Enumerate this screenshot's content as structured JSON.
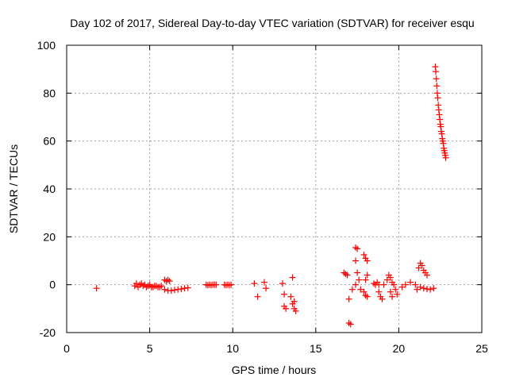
{
  "chart_data": {
    "type": "scatter",
    "title": "Day 102 of 2017, Sidereal Day-to-day VTEC variation (SDTVAR) for receiver esqu",
    "xlabel": "GPS time / hours",
    "ylabel": "SDTVAR / TECUs",
    "xlim": [
      0,
      25
    ],
    "ylim": [
      -20,
      100
    ],
    "xticks": [
      0,
      5,
      10,
      15,
      20,
      25
    ],
    "yticks": [
      -20,
      0,
      20,
      40,
      60,
      80,
      100
    ],
    "xtick_labels": [
      "0",
      "5",
      "10",
      "15",
      "20",
      "25"
    ],
    "ytick_labels": [
      "-20",
      "0",
      "20",
      "40",
      "60",
      "80",
      "100"
    ],
    "grid": true,
    "marker": "+",
    "color": "#ff0000",
    "series": [
      {
        "name": "SDTVAR",
        "points": [
          [
            1.8,
            -1.5
          ],
          [
            4.1,
            -0.5
          ],
          [
            4.2,
            0.5
          ],
          [
            4.3,
            -1
          ],
          [
            4.4,
            0
          ],
          [
            4.5,
            0.5
          ],
          [
            4.6,
            -0.5
          ],
          [
            4.7,
            0
          ],
          [
            4.8,
            -1
          ],
          [
            4.9,
            -0.5
          ],
          [
            5.0,
            0
          ],
          [
            5.1,
            -1
          ],
          [
            5.2,
            -1
          ],
          [
            5.3,
            -0.5
          ],
          [
            5.4,
            -0.5
          ],
          [
            5.5,
            -1
          ],
          [
            5.6,
            -1
          ],
          [
            5.7,
            -0.5
          ],
          [
            5.9,
            2
          ],
          [
            6.0,
            1.5
          ],
          [
            6.1,
            2
          ],
          [
            6.2,
            1.5
          ],
          [
            5.9,
            -2
          ],
          [
            6.1,
            -2.5
          ],
          [
            6.3,
            -2.5
          ],
          [
            6.5,
            -2.2
          ],
          [
            6.7,
            -2
          ],
          [
            6.9,
            -1.8
          ],
          [
            7.1,
            -1.5
          ],
          [
            7.3,
            -1.3
          ],
          [
            8.4,
            0
          ],
          [
            8.5,
            -0.2
          ],
          [
            8.6,
            0
          ],
          [
            8.7,
            -0.2
          ],
          [
            8.8,
            0
          ],
          [
            8.9,
            0
          ],
          [
            9.0,
            0
          ],
          [
            9.5,
            0
          ],
          [
            9.6,
            -0.2
          ],
          [
            9.7,
            0
          ],
          [
            9.8,
            -0.2
          ],
          [
            9.9,
            0
          ],
          [
            11.3,
            0.5
          ],
          [
            11.5,
            -5
          ],
          [
            11.9,
            1
          ],
          [
            12.0,
            -1.5
          ],
          [
            13.0,
            0.5
          ],
          [
            13.1,
            -4
          ],
          [
            13.1,
            -9
          ],
          [
            13.2,
            -10
          ],
          [
            13.5,
            -5
          ],
          [
            13.6,
            3
          ],
          [
            13.6,
            -8
          ],
          [
            13.7,
            -10
          ],
          [
            13.7,
            -7
          ],
          [
            13.8,
            -11
          ],
          [
            16.7,
            5
          ],
          [
            16.8,
            4.5
          ],
          [
            16.9,
            4
          ],
          [
            17.0,
            -6
          ],
          [
            17.0,
            -16
          ],
          [
            17.1,
            -16.5
          ],
          [
            17.2,
            -2
          ],
          [
            17.4,
            15.5
          ],
          [
            17.4,
            10
          ],
          [
            17.5,
            15
          ],
          [
            17.5,
            5
          ],
          [
            17.4,
            0
          ],
          [
            17.6,
            2
          ],
          [
            17.7,
            -2
          ],
          [
            17.9,
            12.5
          ],
          [
            18.0,
            11
          ],
          [
            18.1,
            10
          ],
          [
            18.0,
            2
          ],
          [
            18.1,
            4
          ],
          [
            17.9,
            -3
          ],
          [
            18.0,
            -4.5
          ],
          [
            18.1,
            -5
          ],
          [
            18.5,
            0.5
          ],
          [
            18.6,
            0
          ],
          [
            18.7,
            1
          ],
          [
            18.8,
            0
          ],
          [
            18.8,
            -3
          ],
          [
            18.9,
            -5
          ],
          [
            19.0,
            -6
          ],
          [
            19.1,
            0
          ],
          [
            19.3,
            2
          ],
          [
            19.4,
            4
          ],
          [
            19.5,
            3
          ],
          [
            19.6,
            1
          ],
          [
            19.7,
            0
          ],
          [
            19.5,
            -3
          ],
          [
            19.6,
            -5
          ],
          [
            19.8,
            -2
          ],
          [
            19.9,
            -4
          ],
          [
            20.2,
            -1
          ],
          [
            20.4,
            0
          ],
          [
            20.7,
            1
          ],
          [
            21.0,
            0
          ],
          [
            21.1,
            -2
          ],
          [
            21.2,
            7
          ],
          [
            21.3,
            9
          ],
          [
            21.4,
            8
          ],
          [
            21.5,
            6
          ],
          [
            21.6,
            5
          ],
          [
            21.7,
            4
          ],
          [
            21.3,
            -1
          ],
          [
            21.5,
            -1.5
          ],
          [
            21.7,
            -1.8
          ],
          [
            21.9,
            -2
          ],
          [
            22.1,
            -1.5
          ],
          [
            22.2,
            91
          ],
          [
            22.23,
            89
          ],
          [
            22.26,
            86
          ],
          [
            22.29,
            83
          ],
          [
            22.32,
            80
          ],
          [
            22.35,
            78
          ],
          [
            22.38,
            75
          ],
          [
            22.41,
            73
          ],
          [
            22.44,
            71
          ],
          [
            22.47,
            69
          ],
          [
            22.5,
            67
          ],
          [
            22.53,
            66
          ],
          [
            22.56,
            64
          ],
          [
            22.59,
            63
          ],
          [
            22.62,
            61
          ],
          [
            22.65,
            60
          ],
          [
            22.68,
            59
          ],
          [
            22.71,
            57
          ],
          [
            22.74,
            56
          ],
          [
            22.77,
            55
          ],
          [
            22.8,
            54
          ],
          [
            22.83,
            53
          ]
        ]
      }
    ]
  }
}
